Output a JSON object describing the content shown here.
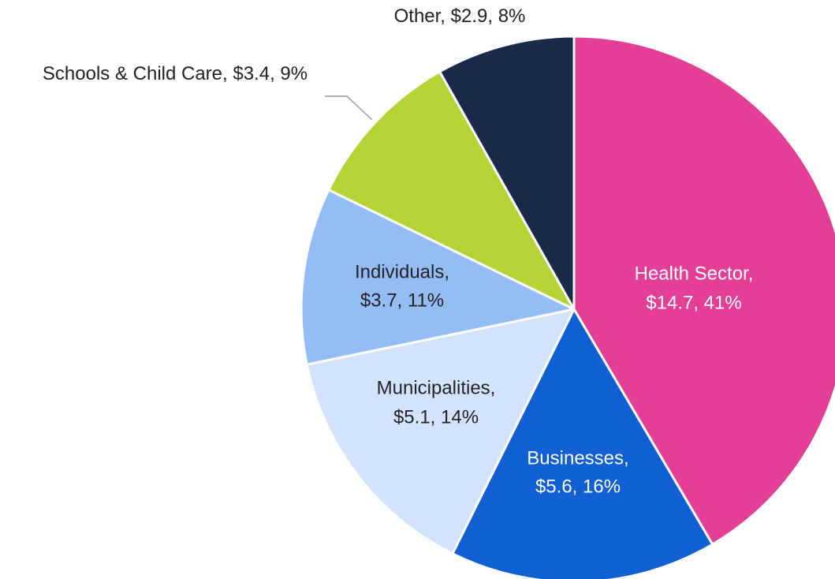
{
  "chart_data": {
    "type": "pie",
    "categories": [
      "Health Sector,",
      "Businesses,",
      "Municipalities,",
      "Individuals,",
      "Schools & Child Care,",
      "Other,"
    ],
    "values": [
      14.7,
      5.6,
      5.1,
      3.7,
      3.4,
      2.9
    ],
    "value_labels": [
      "$14.7, 41%",
      "$5.6, 16%",
      "$5.1, 14%",
      "$3.7, 11%",
      "$3.4, 9%",
      "$2.9, 8%"
    ],
    "colors": [
      "#e43f96",
      "#1060d4",
      "#d3e3fb",
      "#94bcf5",
      "#b5d335",
      "#1b2a4a"
    ]
  }
}
